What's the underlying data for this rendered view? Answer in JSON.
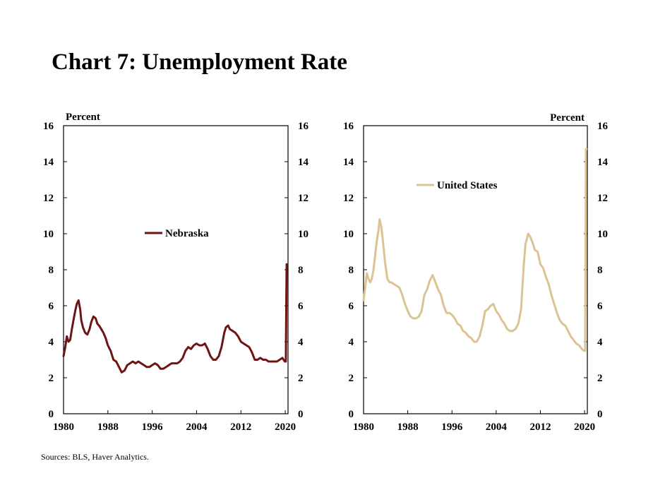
{
  "title": "Chart 7: Unemployment Rate",
  "source": "Sources: BLS, Haver Analytics.",
  "colors": {
    "nebraska": "#6e1414",
    "united_states": "#dcc394"
  },
  "chart_data": [
    {
      "type": "line",
      "unit_label": "Percent",
      "unit_label_position": "top-left",
      "ylim": [
        0,
        16
      ],
      "xlim": [
        1980,
        2020.5
      ],
      "yticks": [
        "0",
        "2",
        "4",
        "6",
        "8",
        "10",
        "12",
        "14",
        "16"
      ],
      "xticks": [
        "1980",
        "1988",
        "1996",
        "2004",
        "2012",
        "2020"
      ],
      "legend_position": "center",
      "grid": false,
      "series": [
        {
          "name": "Nebraska",
          "color": "#6e1414",
          "x": [
            1980,
            1980.3,
            1980.6,
            1980.9,
            1981.2,
            1981.5,
            1981.8,
            1982.1,
            1982.4,
            1982.7,
            1983.0,
            1983.2,
            1983.5,
            1983.9,
            1984.3,
            1984.7,
            1985.0,
            1985.4,
            1985.8,
            1986.1,
            1986.4,
            1986.8,
            1987.2,
            1987.6,
            1988.0,
            1988.5,
            1989.0,
            1989.5,
            1990.0,
            1990.5,
            1991.0,
            1991.5,
            1992.0,
            1992.5,
            1993.0,
            1993.5,
            1994.0,
            1994.5,
            1995.0,
            1995.5,
            1996.0,
            1996.5,
            1997.0,
            1997.5,
            1998.0,
            1998.5,
            1999.0,
            1999.5,
            2000.0,
            2000.5,
            2001.0,
            2001.5,
            2002.0,
            2002.5,
            2003.0,
            2003.5,
            2004.0,
            2004.5,
            2005.0,
            2005.5,
            2006.0,
            2006.5,
            2007.0,
            2007.5,
            2008.0,
            2008.5,
            2009.0,
            2009.3,
            2009.7,
            2010.0,
            2010.5,
            2011.0,
            2011.5,
            2012.0,
            2012.5,
            2013.0,
            2013.5,
            2014.0,
            2014.5,
            2015.0,
            2015.5,
            2016.0,
            2016.5,
            2017.0,
            2017.5,
            2018.0,
            2018.5,
            2019.0,
            2019.5,
            2019.9,
            2020.1,
            2020.25,
            2020.35
          ],
          "values": [
            3.2,
            3.7,
            4.3,
            4.0,
            4.1,
            4.7,
            5.2,
            5.7,
            6.1,
            6.3,
            5.8,
            5.2,
            4.8,
            4.5,
            4.4,
            4.7,
            5.1,
            5.4,
            5.3,
            5.0,
            4.9,
            4.7,
            4.5,
            4.2,
            3.8,
            3.5,
            3.0,
            2.9,
            2.6,
            2.3,
            2.4,
            2.7,
            2.8,
            2.9,
            2.8,
            2.9,
            2.8,
            2.7,
            2.6,
            2.6,
            2.7,
            2.8,
            2.7,
            2.5,
            2.5,
            2.6,
            2.7,
            2.8,
            2.8,
            2.8,
            2.9,
            3.1,
            3.5,
            3.7,
            3.6,
            3.8,
            3.9,
            3.8,
            3.8,
            3.9,
            3.6,
            3.2,
            3.0,
            3.0,
            3.2,
            3.7,
            4.5,
            4.8,
            4.9,
            4.7,
            4.6,
            4.5,
            4.3,
            4.0,
            3.9,
            3.8,
            3.7,
            3.4,
            3.0,
            3.0,
            3.1,
            3.0,
            3.0,
            2.9,
            2.9,
            2.9,
            2.9,
            3.0,
            3.1,
            2.9,
            2.9,
            8.3,
            8.3
          ]
        }
      ]
    },
    {
      "type": "line",
      "unit_label": "Percent",
      "unit_label_position": "top-right",
      "ylim": [
        0,
        16
      ],
      "xlim": [
        1980,
        2020.5
      ],
      "yticks": [
        "0",
        "2",
        "4",
        "6",
        "8",
        "10",
        "12",
        "14",
        "16"
      ],
      "xticks": [
        "1980",
        "1988",
        "1996",
        "2004",
        "2012",
        "2020"
      ],
      "legend_position": "top-center",
      "grid": false,
      "series": [
        {
          "name": "United States",
          "color": "#dcc394",
          "x": [
            1980,
            1980.3,
            1980.6,
            1980.9,
            1981.2,
            1981.5,
            1981.8,
            1982.1,
            1982.4,
            1982.7,
            1982.9,
            1983.2,
            1983.5,
            1983.9,
            1984.3,
            1984.7,
            1985.0,
            1985.5,
            1986.0,
            1986.5,
            1987.0,
            1987.5,
            1988.0,
            1988.5,
            1989.0,
            1989.5,
            1990.0,
            1990.5,
            1991.0,
            1991.5,
            1992.0,
            1992.5,
            1993.0,
            1993.5,
            1994.0,
            1994.5,
            1995.0,
            1995.5,
            1996.0,
            1996.5,
            1997.0,
            1997.5,
            1998.0,
            1998.5,
            1999.0,
            1999.5,
            2000.0,
            2000.5,
            2001.0,
            2001.5,
            2002.0,
            2002.5,
            2003.0,
            2003.5,
            2004.0,
            2004.5,
            2005.0,
            2005.5,
            2006.0,
            2006.5,
            2007.0,
            2007.5,
            2008.0,
            2008.5,
            2009.0,
            2009.3,
            2009.8,
            2010.2,
            2010.6,
            2011.0,
            2011.5,
            2012.0,
            2012.5,
            2013.0,
            2013.5,
            2014.0,
            2014.5,
            2015.0,
            2015.5,
            2016.0,
            2016.5,
            2017.0,
            2017.5,
            2018.0,
            2018.5,
            2019.0,
            2019.5,
            2019.9,
            2020.1,
            2020.25,
            2020.35
          ],
          "values": [
            6.3,
            7.0,
            7.8,
            7.5,
            7.3,
            7.5,
            8.0,
            8.8,
            9.6,
            10.2,
            10.8,
            10.4,
            9.6,
            8.4,
            7.5,
            7.3,
            7.3,
            7.2,
            7.1,
            7.0,
            6.6,
            6.1,
            5.7,
            5.4,
            5.3,
            5.3,
            5.4,
            5.7,
            6.6,
            6.9,
            7.4,
            7.7,
            7.3,
            6.9,
            6.6,
            6.0,
            5.6,
            5.6,
            5.5,
            5.3,
            5.0,
            4.9,
            4.6,
            4.5,
            4.3,
            4.2,
            4.0,
            4.0,
            4.3,
            4.9,
            5.7,
            5.8,
            6.0,
            6.1,
            5.7,
            5.5,
            5.2,
            5.0,
            4.7,
            4.6,
            4.6,
            4.7,
            5.0,
            5.8,
            8.3,
            9.4,
            10.0,
            9.8,
            9.5,
            9.1,
            9.0,
            8.3,
            8.1,
            7.6,
            7.2,
            6.6,
            6.1,
            5.6,
            5.2,
            5.0,
            4.9,
            4.6,
            4.3,
            4.1,
            3.9,
            3.8,
            3.6,
            3.5,
            3.5,
            14.7,
            14.7
          ]
        }
      ]
    }
  ]
}
